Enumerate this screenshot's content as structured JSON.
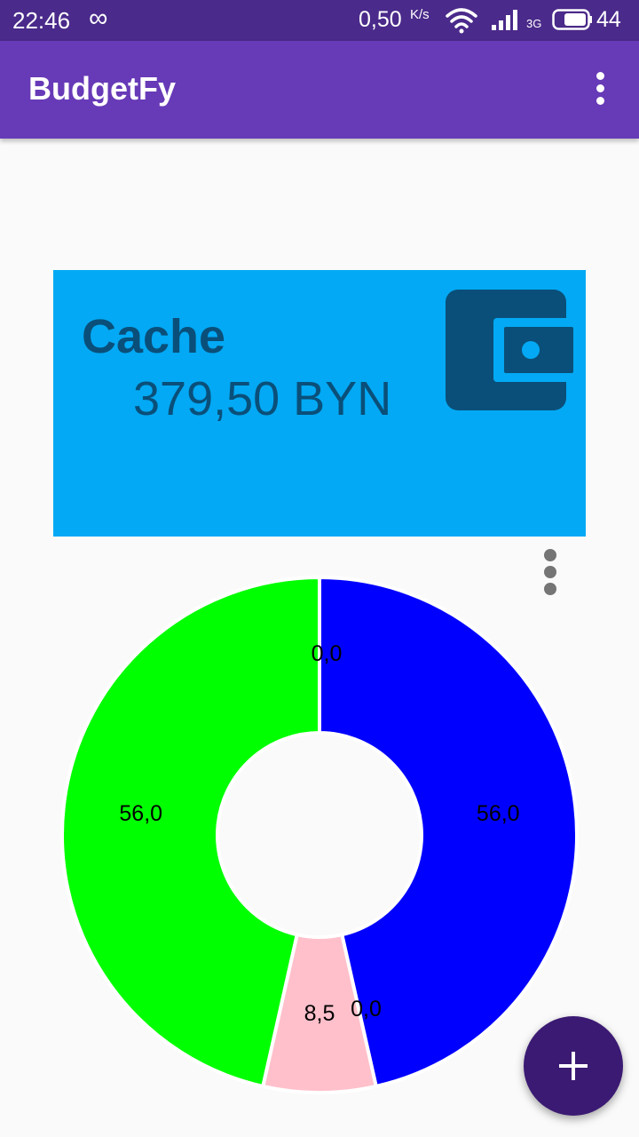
{
  "status_bar": {
    "time": "22:46",
    "infinity_glyph": "∞",
    "speed": "0,50",
    "speed_unit": "K/s",
    "network_type": "3G",
    "battery_level": "44",
    "icons": [
      "infinity-icon",
      "wifi-icon",
      "signal-icon",
      "battery-icon"
    ]
  },
  "app_bar": {
    "title": "BudgetFy",
    "menu_icon": "more-vert-icon"
  },
  "wallet": {
    "name": "Cache",
    "balance": "379,50 BYN",
    "icon": "wallet-icon",
    "card_color": "#03a9f4",
    "text_color": "#0a4f79"
  },
  "chart_menu_icon": "more-vert-icon",
  "chart_data": {
    "type": "pie",
    "style": "donut",
    "title": "",
    "slices": [
      {
        "label": "56,0",
        "value": 56.0,
        "color": "#0000ff"
      },
      {
        "label": "0,0",
        "value": 0.0,
        "color": "#ffa500"
      },
      {
        "label": "8,5",
        "value": 8.5,
        "color": "#ffc0cb"
      },
      {
        "label": "56,0",
        "value": 56.0,
        "color": "#00ff00"
      },
      {
        "label": "0,0",
        "value": 0.0,
        "color": "#ff0000"
      }
    ]
  },
  "fab": {
    "icon": "plus-icon",
    "color": "#3b1a73"
  }
}
